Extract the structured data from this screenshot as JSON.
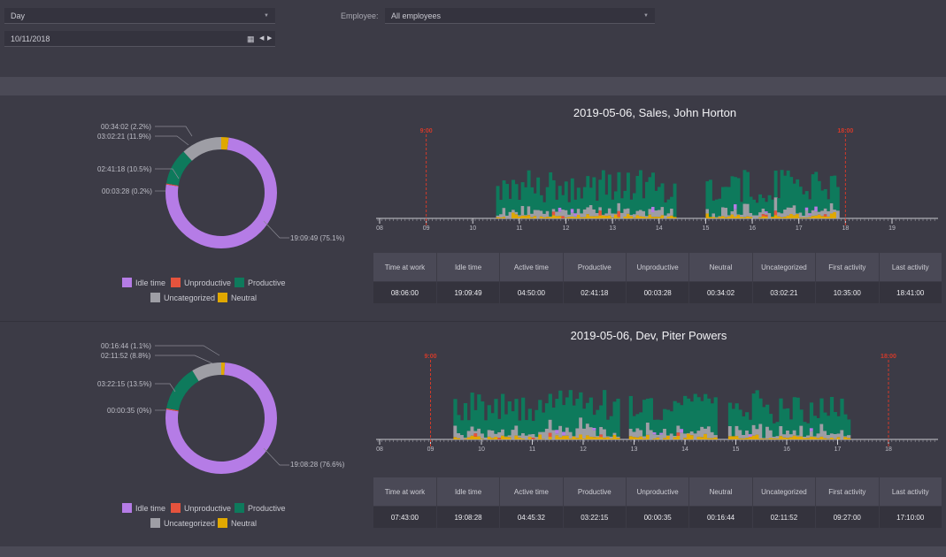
{
  "filters": {
    "period": "Day",
    "employee_label": "Employee:",
    "employee_value": "All employees",
    "date": "10/11/2018"
  },
  "colors": {
    "idle": "#b57ce6",
    "unproductive": "#e5533d",
    "productive": "#0e7a5c",
    "uncategorized": "#9e9ea5",
    "neutral": "#e0a800",
    "marker": "#d23a2a"
  },
  "legend": {
    "idle": "Idle time",
    "unproductive": "Unproductive",
    "productive": "Productive",
    "uncategorized": "Uncategorized",
    "neutral": "Neutral"
  },
  "table_headers": [
    "Time at work",
    "Idle time",
    "Active time",
    "Productive",
    "Unproductive",
    "Neutral",
    "Uncategorized",
    "First activity",
    "Last activity"
  ],
  "panels": [
    {
      "title": "2019-05-06, Sales, John Horton",
      "donut": {
        "idle": 75.1,
        "productive": 10.5,
        "unproductive": 0.2,
        "uncategorized": 11.9,
        "neutral": 2.2,
        "labels": {
          "neutral": "00:34:02 (2.2%)",
          "uncategorized": "03:02:21 (11.9%)",
          "productive": "02:41:18 (10.5%)",
          "unproductive": "00:03:28 (0.2%)",
          "idle": "19:09:49 (75.1%)"
        }
      },
      "timeline": {
        "start_marker": "9:00",
        "end_marker": "18:00",
        "start_marker_hour": 9,
        "end_marker_hour": 18,
        "hour_range": [
          8,
          19
        ],
        "hour_labels": [
          "08",
          "09",
          "10",
          "11",
          "12",
          "13",
          "14",
          "15",
          "16",
          "17",
          "18",
          "19"
        ],
        "activity_spans": [
          [
            10.5,
            14.3
          ],
          [
            15.0,
            17.8
          ]
        ]
      },
      "stats": [
        "08:06:00",
        "19:09:49",
        "04:50:00",
        "02:41:18",
        "00:03:28",
        "00:34:02",
        "03:02:21",
        "10:35:00",
        "18:41:00"
      ]
    },
    {
      "title": "2019-05-06, Dev, Piter Powers",
      "donut": {
        "idle": 76.6,
        "productive": 13.5,
        "unproductive": 0.0,
        "uncategorized": 8.8,
        "neutral": 1.1,
        "labels": {
          "neutral": "00:16:44 (1.1%)",
          "uncategorized": "02:11:52 (8.8%)",
          "productive": "03:22:15 (13.5%)",
          "unproductive": "00:00:35 (0%)",
          "idle": "19:08:28 (76.6%)"
        }
      },
      "timeline": {
        "start_marker": "9:00",
        "end_marker": "18:00",
        "start_marker_hour": 9,
        "end_marker_hour": 18,
        "hour_range": [
          8,
          18
        ],
        "hour_labels": [
          "08",
          "09",
          "10",
          "11",
          "12",
          "13",
          "14",
          "15",
          "16",
          "17",
          "18"
        ],
        "activity_spans": [
          [
            9.45,
            12.7
          ],
          [
            12.9,
            14.6
          ],
          [
            14.85,
            17.2
          ]
        ]
      },
      "stats": [
        "07:43:00",
        "19:08:28",
        "04:45:32",
        "03:22:15",
        "00:00:35",
        "00:16:44",
        "02:11:52",
        "09:27:00",
        "17:10:00"
      ]
    }
  ]
}
